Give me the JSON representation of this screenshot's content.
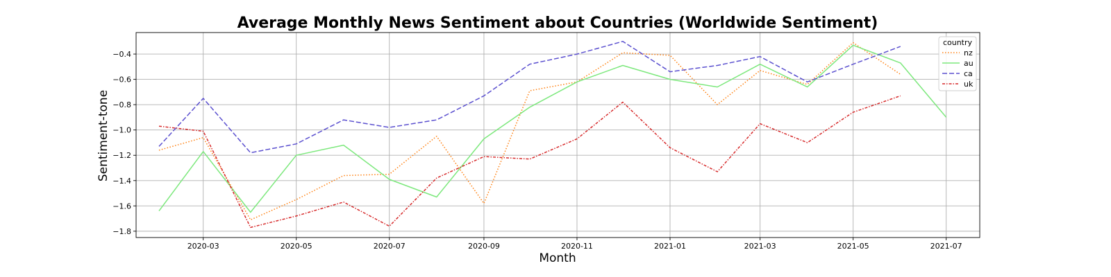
{
  "chart_data": {
    "type": "line",
    "title": "Average Monthly News Sentiment about Countries (Worldwide Sentiment)",
    "xlabel": "Month",
    "ylabel": "Sentiment-tone",
    "x_range": [
      "2020-01-17",
      "2021-07-23"
    ],
    "ylim": [
      -1.85,
      -0.23
    ],
    "grid": true,
    "legend_title": "country",
    "legend_position": "top-right",
    "x_ticks": [
      {
        "date": "2020-03-01",
        "label": "2020-03"
      },
      {
        "date": "2020-05-01",
        "label": "2020-05"
      },
      {
        "date": "2020-07-01",
        "label": "2020-07"
      },
      {
        "date": "2020-09-01",
        "label": "2020-09"
      },
      {
        "date": "2020-11-01",
        "label": "2020-11"
      },
      {
        "date": "2021-01-01",
        "label": "2021-01"
      },
      {
        "date": "2021-03-01",
        "label": "2021-03"
      },
      {
        "date": "2021-05-01",
        "label": "2021-05"
      },
      {
        "date": "2021-07-01",
        "label": "2021-07"
      }
    ],
    "y_ticks": [
      {
        "value": -0.4,
        "label": "−0.4"
      },
      {
        "value": -0.6,
        "label": "−0.6"
      },
      {
        "value": -0.8,
        "label": "−0.8"
      },
      {
        "value": -1.0,
        "label": "−1.0"
      },
      {
        "value": -1.2,
        "label": "−1.2"
      },
      {
        "value": -1.4,
        "label": "−1.4"
      },
      {
        "value": -1.6,
        "label": "−1.6"
      },
      {
        "value": -1.8,
        "label": "−1.8"
      }
    ],
    "series": [
      {
        "name": "nz",
        "color": "#ff7f0e",
        "style": "dotted",
        "x": [
          "2020-02-01",
          "2020-03-01",
          "2020-04-01",
          "2020-05-01",
          "2020-06-01",
          "2020-07-01",
          "2020-08-01",
          "2020-09-01",
          "2020-10-01",
          "2020-11-01",
          "2020-12-01",
          "2021-01-01",
          "2021-02-01",
          "2021-03-01",
          "2021-04-01",
          "2021-05-01",
          "2021-06-01"
        ],
        "y": [
          -1.16,
          -1.06,
          -1.71,
          -1.55,
          -1.36,
          -1.35,
          -1.05,
          -1.58,
          -0.69,
          -0.62,
          -0.39,
          -0.41,
          -0.8,
          -0.53,
          -0.64,
          -0.31,
          -0.56
        ]
      },
      {
        "name": "au",
        "color": "#7ce87c",
        "style": "solid",
        "x": [
          "2020-02-01",
          "2020-03-01",
          "2020-04-01",
          "2020-05-01",
          "2020-06-01",
          "2020-07-01",
          "2020-08-01",
          "2020-09-01",
          "2020-10-01",
          "2020-11-01",
          "2020-12-01",
          "2021-01-01",
          "2021-02-01",
          "2021-03-01",
          "2021-04-01",
          "2021-05-01",
          "2021-06-01",
          "2021-07-01"
        ],
        "y": [
          -1.64,
          -1.17,
          -1.65,
          -1.2,
          -1.12,
          -1.39,
          -1.53,
          -1.07,
          -0.82,
          -0.62,
          -0.49,
          -0.6,
          -0.66,
          -0.48,
          -0.66,
          -0.33,
          -0.47,
          -0.9
        ]
      },
      {
        "name": "ca",
        "color": "#5a4fcf",
        "style": "dashed",
        "x": [
          "2020-02-01",
          "2020-03-01",
          "2020-04-01",
          "2020-05-01",
          "2020-06-01",
          "2020-07-01",
          "2020-08-01",
          "2020-09-01",
          "2020-10-01",
          "2020-11-01",
          "2020-12-01",
          "2021-01-01",
          "2021-02-01",
          "2021-03-01",
          "2021-04-01",
          "2021-05-01",
          "2021-06-01"
        ],
        "y": [
          -1.13,
          -0.75,
          -1.18,
          -1.11,
          -0.92,
          -0.98,
          -0.92,
          -0.73,
          -0.48,
          -0.4,
          -0.3,
          -0.54,
          -0.49,
          -0.42,
          -0.62,
          -0.48,
          -0.34
        ]
      },
      {
        "name": "uk",
        "color": "#d62728",
        "style": "dashdot",
        "x": [
          "2020-02-01",
          "2020-03-01",
          "2020-04-01",
          "2020-05-01",
          "2020-06-01",
          "2020-07-01",
          "2020-08-01",
          "2020-09-01",
          "2020-10-01",
          "2020-11-01",
          "2020-12-01",
          "2021-01-01",
          "2021-02-01",
          "2021-03-01",
          "2021-04-01",
          "2021-05-01",
          "2021-06-01"
        ],
        "y": [
          -0.97,
          -1.01,
          -1.77,
          -1.68,
          -1.57,
          -1.76,
          -1.38,
          -1.21,
          -1.23,
          -1.07,
          -0.78,
          -1.14,
          -1.33,
          -0.95,
          -1.1,
          -0.86,
          -0.73
        ]
      }
    ]
  }
}
